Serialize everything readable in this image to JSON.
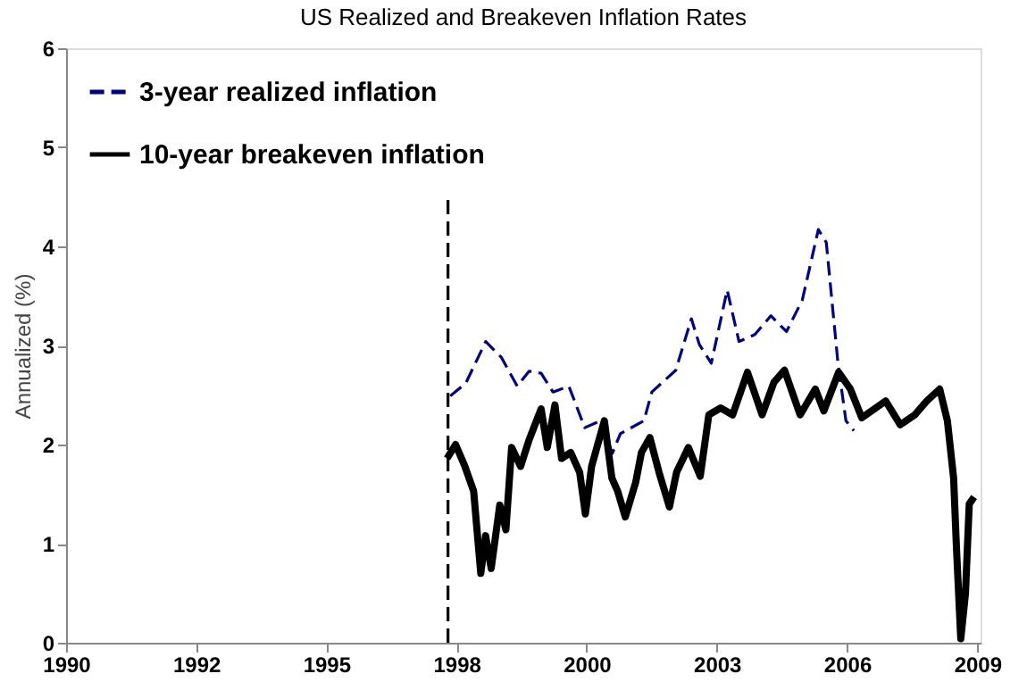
{
  "chart_data": {
    "type": "line",
    "title": "US Realized and Breakeven Inflation Rates",
    "ylabel": "Annualized (%)",
    "xlim": [
      "1990-01-01",
      "2009-04-01"
    ],
    "xticks": [
      {
        "value": "1990-01-01",
        "label": "1990"
      },
      {
        "value": "1992-09-27",
        "label": "1992"
      },
      {
        "value": "1995-06-24",
        "label": "1995"
      },
      {
        "value": "1998-03-21",
        "label": "1998"
      },
      {
        "value": "2000-12-16",
        "label": "2000"
      },
      {
        "value": "2003-09-13",
        "label": "2003"
      },
      {
        "value": "2006-06-10",
        "label": "2006"
      },
      {
        "value": "2009-03-07",
        "label": "2009"
      }
    ],
    "ylim": [
      0,
      6
    ],
    "yticks": [
      0,
      1,
      2,
      3,
      4,
      5,
      6
    ],
    "grid": false,
    "legend": "top left",
    "marker": "none",
    "series": [
      {
        "name": "3-year realized inflation",
        "color": "#000080",
        "line_style": "dashed",
        "x": [
          "1998-02",
          "1998-06",
          "1998-11",
          "1999-03",
          "1999-07",
          "1999-10",
          "2000-01",
          "2000-04",
          "2000-08",
          "2000-12",
          "2001-04",
          "2001-07",
          "2001-09",
          "2002-03",
          "2002-05",
          "2002-11",
          "2003-03",
          "2003-05",
          "2003-08",
          "2003-12",
          "2004-03",
          "2004-07",
          "2004-11",
          "2005-03",
          "2005-07",
          "2005-11",
          "2006-01",
          "2006-04",
          "2006-06",
          "2006-08"
        ],
        "values": [
          2.49,
          2.62,
          3.04,
          2.88,
          2.59,
          2.74,
          2.72,
          2.53,
          2.59,
          2.17,
          2.24,
          1.91,
          2.11,
          2.24,
          2.53,
          2.75,
          3.27,
          3.01,
          2.82,
          3.56,
          3.04,
          3.11,
          3.3,
          3.14,
          3.46,
          4.17,
          4.04,
          2.82,
          2.24,
          2.14
        ]
      },
      {
        "name": "10-year breakeven inflation",
        "color": "#000000",
        "line_style": "solid",
        "x": [
          "1998-01-08",
          "1998-03-14",
          "1998-05-22",
          "1998-07-31",
          "1998-09-24",
          "1998-10-31",
          "1998-12-13",
          "1999-02-17",
          "1999-04-05",
          "1999-05-19",
          "1999-07-27",
          "1999-10-01",
          "2000-01-01",
          "2000-02-17",
          "2000-04-16",
          "2000-06-06",
          "2000-08-15",
          "2000-10-23",
          "2000-12-06",
          "2001-01-23",
          "2001-05-01",
          "2001-06-28",
          "2001-08-11",
          "2001-10-09",
          "2001-12-28",
          "2002-02-10",
          "2002-04-16",
          "2002-06-25",
          "2002-09-13",
          "2002-11-07",
          "2003-02-06",
          "2003-05-08",
          "2003-07-13",
          "2003-10-12",
          "2004-01-12",
          "2004-05-05",
          "2004-08-26",
          "2004-11-25",
          "2005-02-14",
          "2005-06-14",
          "2005-10-09",
          "2005-12-13",
          "2006-04-06",
          "2006-07-05",
          "2006-10-01",
          "2007-04-02",
          "2007-07-24",
          "2007-11-13",
          "2008-02-13",
          "2008-05-22",
          "2008-07-20",
          "2008-09-06",
          "2008-09-28",
          "2008-10-31",
          "2008-12-06",
          "2009-01-04",
          "2009-02-10"
        ],
        "values": [
          1.86,
          2.0,
          1.79,
          1.53,
          0.7,
          1.08,
          0.75,
          1.39,
          1.14,
          1.97,
          1.78,
          2.05,
          2.36,
          1.97,
          2.4,
          1.86,
          1.92,
          1.72,
          1.3,
          1.78,
          2.24,
          1.66,
          1.53,
          1.27,
          1.62,
          1.92,
          2.07,
          1.72,
          1.37,
          1.72,
          1.97,
          1.68,
          2.3,
          2.37,
          2.3,
          2.73,
          2.3,
          2.63,
          2.75,
          2.3,
          2.56,
          2.34,
          2.73,
          2.56,
          2.27,
          2.44,
          2.2,
          2.3,
          2.44,
          2.56,
          2.24,
          1.66,
          0.95,
          0.04,
          0.5,
          1.4,
          1.47
        ]
      },
      {
        "type": "line",
        "color": "#000000",
        "line_style": "dashed",
        "x": [
          "1998-01-15",
          "1998-01-15"
        ],
        "values": [
          0,
          4.5
        ]
      }
    ]
  }
}
